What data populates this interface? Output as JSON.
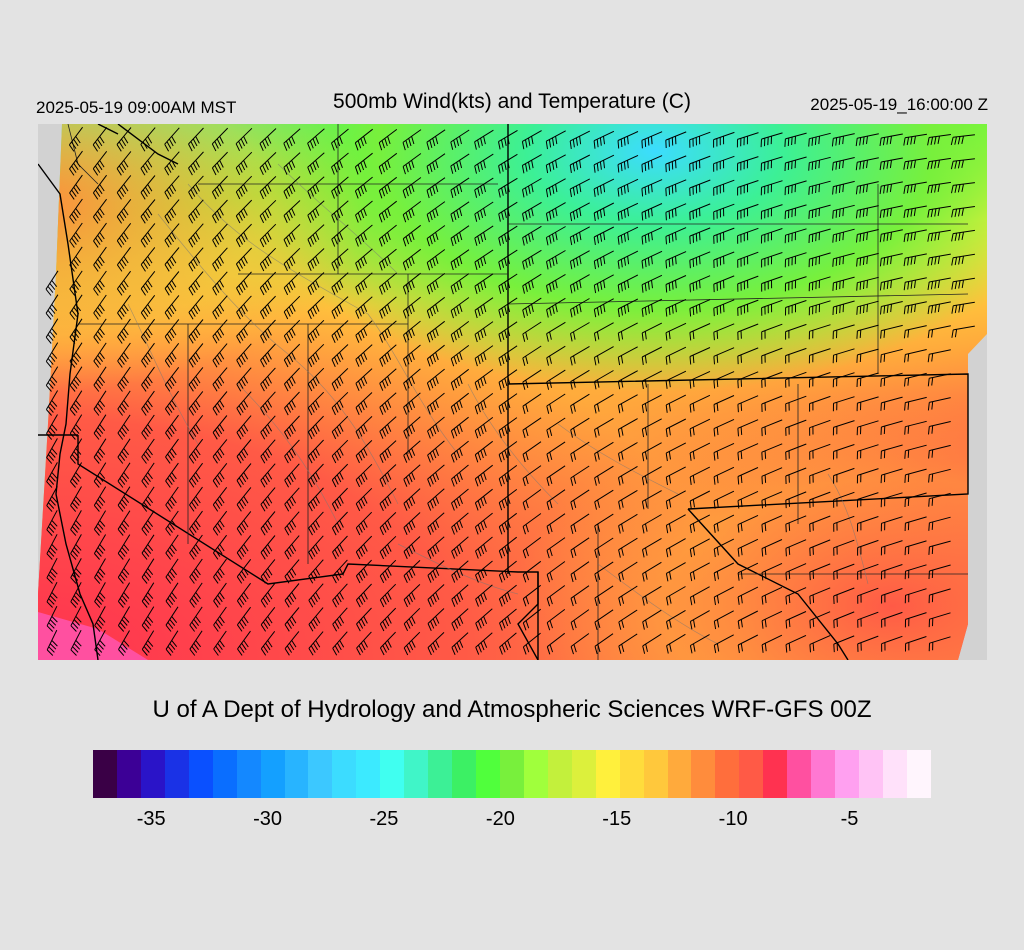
{
  "header": {
    "local_time": "2025-05-19 09:00AM MST",
    "title": "500mb Wind(kts) and Temperature (C)",
    "valid_time": "2025-05-19_16:00:00 Z"
  },
  "credit": "U of A Dept of Hydrology and Atmospheric Sciences WRF-GFS 00Z",
  "colorbar": {
    "colors": [
      "#3a0046",
      "#3c0096",
      "#2a14c8",
      "#1a32e6",
      "#0a50ff",
      "#0a6eff",
      "#1488ff",
      "#14a0ff",
      "#28b4ff",
      "#3cc8ff",
      "#3cdcff",
      "#3ceaff",
      "#40fff0",
      "#40f5c8",
      "#3cf096",
      "#3cf064",
      "#50ff3c",
      "#78f03c",
      "#a0ff3c",
      "#c3f03c",
      "#dcf03c",
      "#fff03c",
      "#ffdc3c",
      "#ffc83c",
      "#ffaa3c",
      "#ff8c3c",
      "#ff6e3c",
      "#ff5a46",
      "#ff3250",
      "#ff50a0",
      "#ff78d2",
      "#ffa0f0",
      "#ffc3f5",
      "#ffe1fa",
      "#fff5fd"
    ],
    "tick_labels": [
      "-35",
      "-30",
      "-25",
      "-20",
      "-15",
      "-10",
      "-5"
    ],
    "tick_values": [
      -35,
      -30,
      -25,
      -20,
      -15,
      -10,
      -5
    ],
    "min": -37.5,
    "max": -1.5
  }
}
